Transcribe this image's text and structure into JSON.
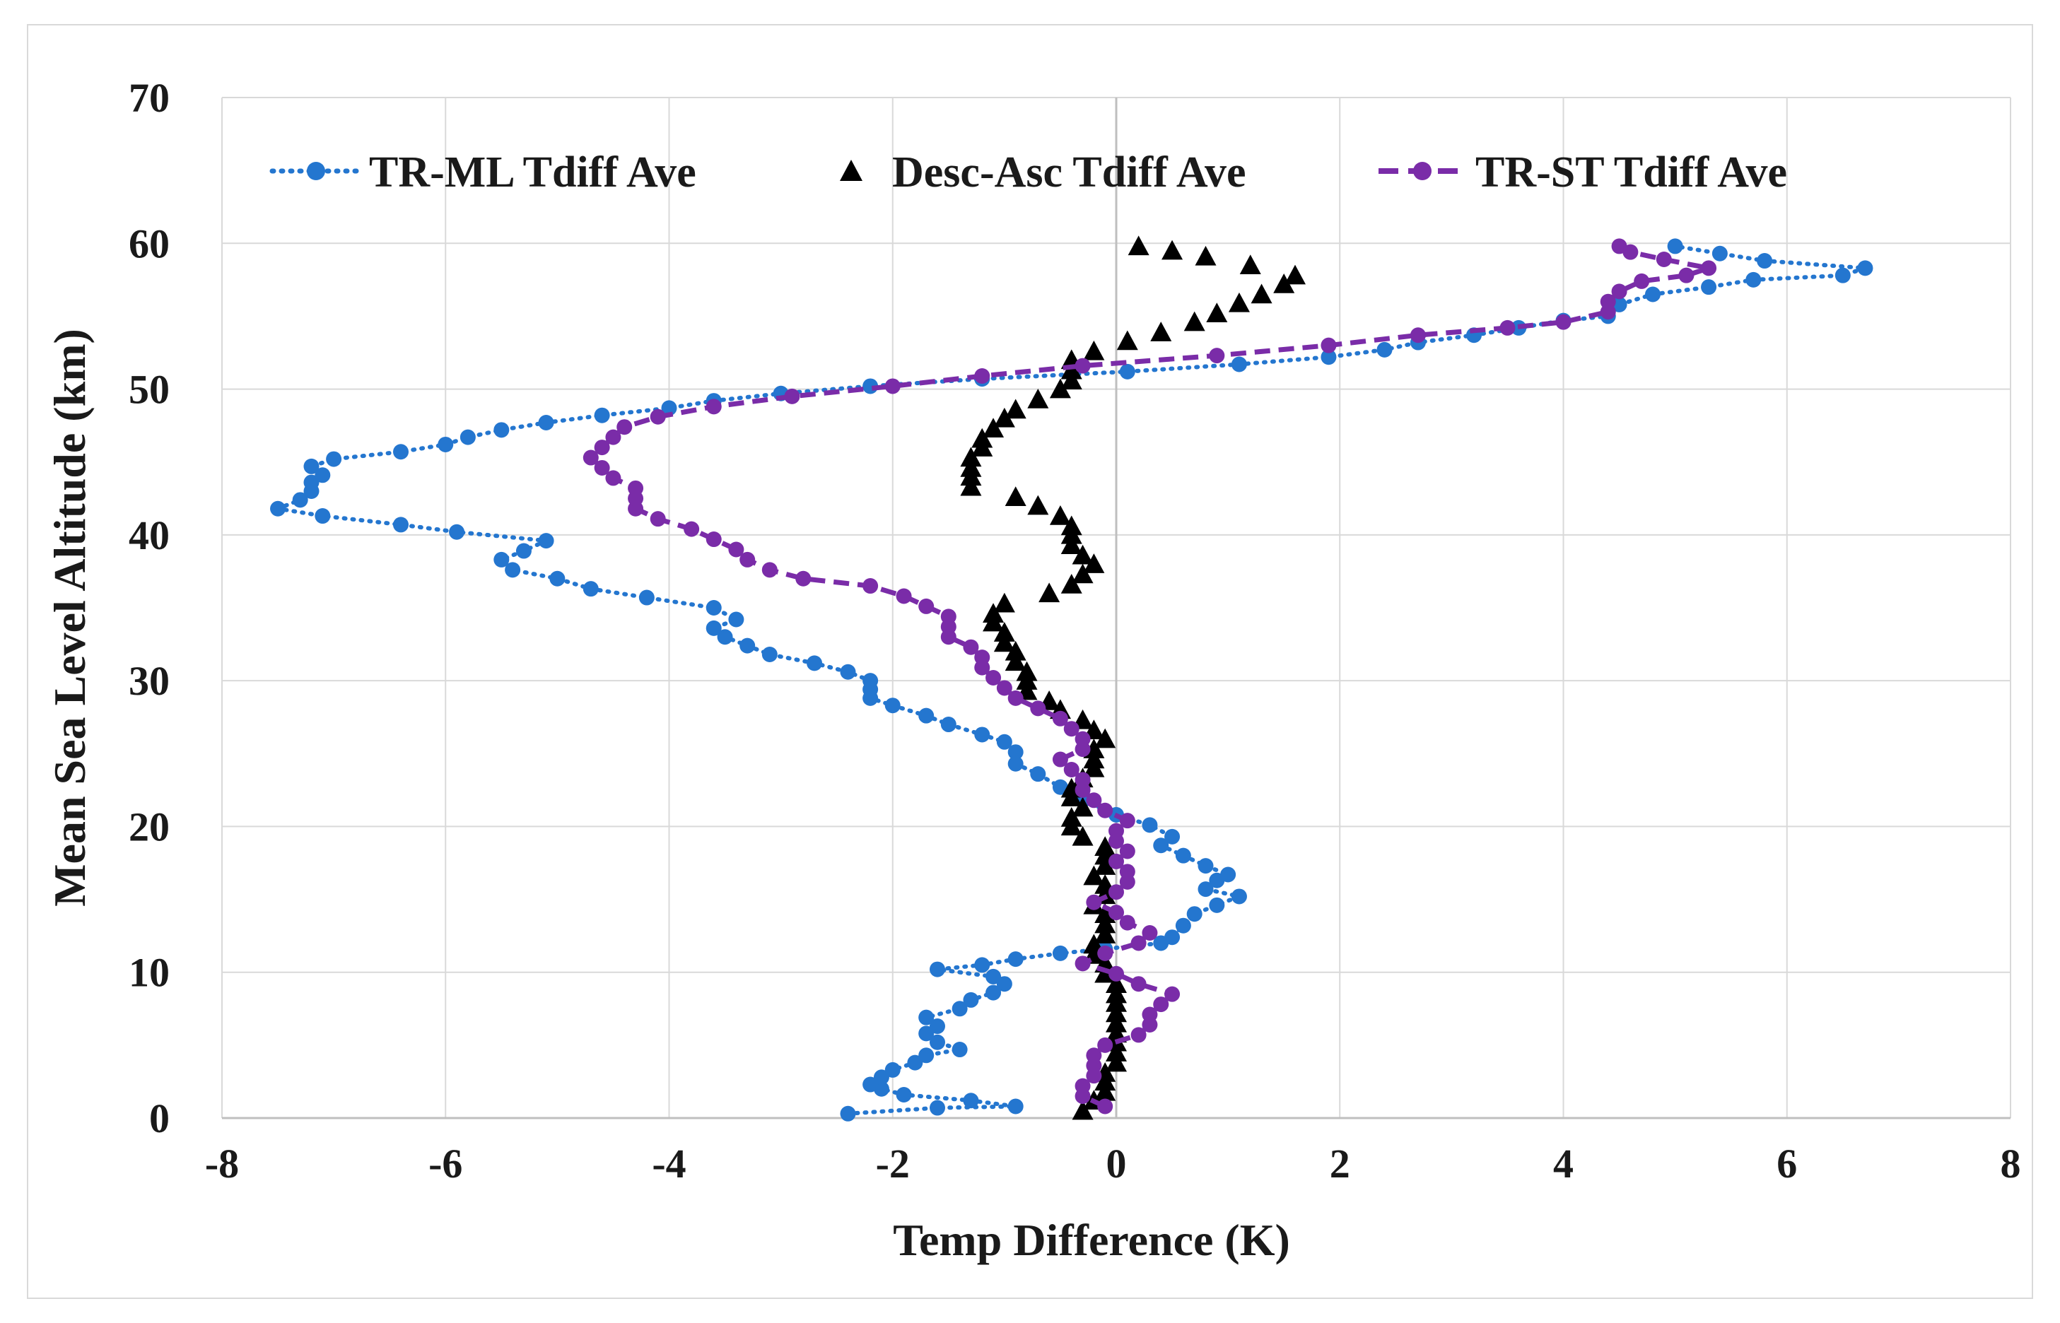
{
  "chart_data": {
    "type": "scatter",
    "title": "",
    "xlabel": "Temp Difference (K)",
    "ylabel": "Mean Sea Level Altitude (km)",
    "xlim": [
      -8,
      8
    ],
    "ylim": [
      0,
      70
    ],
    "xticks": [
      "-8",
      "-6",
      "-4",
      "-2",
      "0",
      "2",
      "4",
      "6",
      "8"
    ],
    "yticks": [
      "0",
      "10",
      "20",
      "30",
      "40",
      "50",
      "60",
      "70"
    ],
    "grid": true,
    "legend_position": "top",
    "series": [
      {
        "name": "TR-ML Tdiff Ave",
        "color": "#2476cf",
        "marker": "circle",
        "line": "dotted",
        "points": [
          [
            -2.4,
            0.3
          ],
          [
            -1.6,
            0.7
          ],
          [
            -0.9,
            0.8
          ],
          [
            -1.3,
            1.2
          ],
          [
            -1.9,
            1.6
          ],
          [
            -2.1,
            2.0
          ],
          [
            -2.2,
            2.3
          ],
          [
            -2.1,
            2.8
          ],
          [
            -2.0,
            3.3
          ],
          [
            -1.8,
            3.8
          ],
          [
            -1.7,
            4.3
          ],
          [
            -1.4,
            4.7
          ],
          [
            -1.6,
            5.2
          ],
          [
            -1.7,
            5.8
          ],
          [
            -1.6,
            6.3
          ],
          [
            -1.7,
            6.9
          ],
          [
            -1.4,
            7.5
          ],
          [
            -1.3,
            8.1
          ],
          [
            -1.1,
            8.6
          ],
          [
            -1.0,
            9.2
          ],
          [
            -1.1,
            9.7
          ],
          [
            -1.6,
            10.2
          ],
          [
            -1.2,
            10.5
          ],
          [
            -0.9,
            10.9
          ],
          [
            -0.5,
            11.3
          ],
          [
            -0.1,
            11.6
          ],
          [
            0.4,
            12.0
          ],
          [
            0.5,
            12.4
          ],
          [
            0.6,
            13.2
          ],
          [
            0.7,
            14.0
          ],
          [
            0.9,
            14.6
          ],
          [
            1.1,
            15.2
          ],
          [
            0.8,
            15.7
          ],
          [
            0.9,
            16.3
          ],
          [
            1.0,
            16.7
          ],
          [
            0.8,
            17.3
          ],
          [
            0.6,
            18.0
          ],
          [
            0.4,
            18.7
          ],
          [
            0.5,
            19.3
          ],
          [
            0.3,
            20.1
          ],
          [
            0.0,
            20.8
          ],
          [
            -0.3,
            21.8
          ],
          [
            -0.5,
            22.7
          ],
          [
            -0.7,
            23.6
          ],
          [
            -0.9,
            24.3
          ],
          [
            -0.9,
            25.1
          ],
          [
            -1.0,
            25.8
          ],
          [
            -1.2,
            26.3
          ],
          [
            -1.5,
            27.0
          ],
          [
            -1.7,
            27.6
          ],
          [
            -2.0,
            28.3
          ],
          [
            -2.2,
            28.8
          ],
          [
            -2.2,
            29.4
          ],
          [
            -2.2,
            30.0
          ],
          [
            -2.4,
            30.6
          ],
          [
            -2.7,
            31.2
          ],
          [
            -3.1,
            31.8
          ],
          [
            -3.3,
            32.4
          ],
          [
            -3.5,
            33.0
          ],
          [
            -3.6,
            33.6
          ],
          [
            -3.4,
            34.2
          ],
          [
            -3.6,
            35.0
          ],
          [
            -4.2,
            35.7
          ],
          [
            -4.7,
            36.3
          ],
          [
            -5.0,
            37.0
          ],
          [
            -5.4,
            37.6
          ],
          [
            -5.5,
            38.3
          ],
          [
            -5.3,
            38.9
          ],
          [
            -5.1,
            39.6
          ],
          [
            -5.9,
            40.2
          ],
          [
            -6.4,
            40.7
          ],
          [
            -7.1,
            41.3
          ],
          [
            -7.5,
            41.8
          ],
          [
            -7.3,
            42.4
          ],
          [
            -7.2,
            43.0
          ],
          [
            -7.2,
            43.6
          ],
          [
            -7.1,
            44.1
          ],
          [
            -7.2,
            44.7
          ],
          [
            -7.0,
            45.2
          ],
          [
            -6.4,
            45.7
          ],
          [
            -6.0,
            46.2
          ],
          [
            -5.8,
            46.7
          ],
          [
            -5.5,
            47.2
          ],
          [
            -5.1,
            47.7
          ],
          [
            -4.6,
            48.2
          ],
          [
            -4.0,
            48.7
          ],
          [
            -3.6,
            49.2
          ],
          [
            -3.0,
            49.7
          ],
          [
            -2.2,
            50.2
          ],
          [
            -1.2,
            50.7
          ],
          [
            0.1,
            51.2
          ],
          [
            1.1,
            51.7
          ],
          [
            1.9,
            52.2
          ],
          [
            2.4,
            52.7
          ],
          [
            2.7,
            53.2
          ],
          [
            3.2,
            53.7
          ],
          [
            3.6,
            54.2
          ],
          [
            4.0,
            54.7
          ],
          [
            4.4,
            55.0
          ],
          [
            4.5,
            55.8
          ],
          [
            4.8,
            56.5
          ],
          [
            5.3,
            57.0
          ],
          [
            5.7,
            57.5
          ],
          [
            6.5,
            57.8
          ],
          [
            6.7,
            58.3
          ],
          [
            5.8,
            58.8
          ],
          [
            5.4,
            59.3
          ],
          [
            5.0,
            59.8
          ]
        ]
      },
      {
        "name": "Desc-Asc Tdiff Ave",
        "color": "#000000",
        "marker": "triangle",
        "line": "none",
        "points": [
          [
            -0.3,
            0.5
          ],
          [
            -0.2,
            1.2
          ],
          [
            -0.1,
            1.8
          ],
          [
            -0.1,
            2.5
          ],
          [
            -0.1,
            3.1
          ],
          [
            0.0,
            3.8
          ],
          [
            0.0,
            4.5
          ],
          [
            0.0,
            5.2
          ],
          [
            0.0,
            5.8
          ],
          [
            0.0,
            6.5
          ],
          [
            0.0,
            7.2
          ],
          [
            0.0,
            7.9
          ],
          [
            0.0,
            8.5
          ],
          [
            0.0,
            9.2
          ],
          [
            -0.1,
            9.9
          ],
          [
            -0.1,
            10.6
          ],
          [
            -0.2,
            11.2
          ],
          [
            -0.2,
            11.9
          ],
          [
            -0.1,
            12.6
          ],
          [
            -0.1,
            13.3
          ],
          [
            -0.1,
            14.0
          ],
          [
            -0.2,
            14.6
          ],
          [
            -0.1,
            15.3
          ],
          [
            -0.1,
            16.0
          ],
          [
            -0.2,
            16.6
          ],
          [
            -0.1,
            17.3
          ],
          [
            -0.1,
            18.0
          ],
          [
            -0.1,
            18.6
          ],
          [
            -0.3,
            19.3
          ],
          [
            -0.4,
            20.0
          ],
          [
            -0.4,
            20.6
          ],
          [
            -0.3,
            21.3
          ],
          [
            -0.4,
            22.0
          ],
          [
            -0.4,
            22.6
          ],
          [
            -0.3,
            23.3
          ],
          [
            -0.2,
            24.0
          ],
          [
            -0.2,
            24.6
          ],
          [
            -0.2,
            25.3
          ],
          [
            -0.1,
            26.0
          ],
          [
            -0.2,
            26.6
          ],
          [
            -0.3,
            27.3
          ],
          [
            -0.5,
            28.0
          ],
          [
            -0.6,
            28.6
          ],
          [
            -0.8,
            29.3
          ],
          [
            -0.8,
            30.0
          ],
          [
            -0.8,
            30.6
          ],
          [
            -0.9,
            31.3
          ],
          [
            -0.9,
            32.0
          ],
          [
            -1.0,
            32.6
          ],
          [
            -1.0,
            33.3
          ],
          [
            -1.1,
            34.0
          ],
          [
            -1.1,
            34.6
          ],
          [
            -1.0,
            35.3
          ],
          [
            -0.6,
            36.0
          ],
          [
            -0.4,
            36.6
          ],
          [
            -0.3,
            37.3
          ],
          [
            -0.2,
            38.0
          ],
          [
            -0.3,
            38.6
          ],
          [
            -0.4,
            39.3
          ],
          [
            -0.4,
            40.0
          ],
          [
            -0.4,
            40.6
          ],
          [
            -0.5,
            41.3
          ],
          [
            -0.7,
            42.0
          ],
          [
            -0.9,
            42.6
          ],
          [
            -1.3,
            43.3
          ],
          [
            -1.3,
            44.0
          ],
          [
            -1.3,
            44.6
          ],
          [
            -1.3,
            45.3
          ],
          [
            -1.2,
            46.0
          ],
          [
            -1.2,
            46.6
          ],
          [
            -1.1,
            47.3
          ],
          [
            -1.0,
            48.0
          ],
          [
            -0.9,
            48.6
          ],
          [
            -0.7,
            49.3
          ],
          [
            -0.5,
            50.0
          ],
          [
            -0.4,
            50.6
          ],
          [
            -0.4,
            51.3
          ],
          [
            -0.4,
            52.0
          ],
          [
            -0.2,
            52.6
          ],
          [
            0.1,
            53.3
          ],
          [
            0.4,
            53.9
          ],
          [
            0.7,
            54.6
          ],
          [
            0.9,
            55.2
          ],
          [
            1.1,
            55.9
          ],
          [
            1.3,
            56.5
          ],
          [
            1.5,
            57.2
          ],
          [
            1.6,
            57.8
          ],
          [
            1.2,
            58.5
          ],
          [
            0.8,
            59.1
          ],
          [
            0.5,
            59.5
          ],
          [
            0.2,
            59.8
          ]
        ]
      },
      {
        "name": "TR-ST Tdiff Ave",
        "color": "#7a2ca8",
        "marker": "circle",
        "line": "dashed",
        "points": [
          [
            -0.1,
            0.8
          ],
          [
            -0.3,
            1.5
          ],
          [
            -0.3,
            2.2
          ],
          [
            -0.2,
            2.9
          ],
          [
            -0.2,
            3.6
          ],
          [
            -0.2,
            4.3
          ],
          [
            -0.1,
            5.0
          ],
          [
            0.2,
            5.7
          ],
          [
            0.3,
            6.4
          ],
          [
            0.3,
            7.1
          ],
          [
            0.4,
            7.8
          ],
          [
            0.5,
            8.5
          ],
          [
            0.2,
            9.2
          ],
          [
            0.0,
            9.9
          ],
          [
            -0.3,
            10.6
          ],
          [
            -0.1,
            11.3
          ],
          [
            0.2,
            12.0
          ],
          [
            0.3,
            12.7
          ],
          [
            0.1,
            13.4
          ],
          [
            0.0,
            14.1
          ],
          [
            -0.2,
            14.8
          ],
          [
            0.0,
            15.5
          ],
          [
            0.1,
            16.2
          ],
          [
            0.1,
            16.9
          ],
          [
            0.0,
            17.6
          ],
          [
            0.1,
            18.3
          ],
          [
            0.0,
            19.0
          ],
          [
            0.0,
            19.7
          ],
          [
            0.1,
            20.4
          ],
          [
            -0.1,
            21.1
          ],
          [
            -0.2,
            21.8
          ],
          [
            -0.3,
            22.5
          ],
          [
            -0.3,
            23.2
          ],
          [
            -0.4,
            23.9
          ],
          [
            -0.5,
            24.6
          ],
          [
            -0.3,
            25.3
          ],
          [
            -0.3,
            26.0
          ],
          [
            -0.4,
            26.7
          ],
          [
            -0.5,
            27.4
          ],
          [
            -0.7,
            28.1
          ],
          [
            -0.9,
            28.8
          ],
          [
            -1.0,
            29.5
          ],
          [
            -1.1,
            30.2
          ],
          [
            -1.2,
            30.9
          ],
          [
            -1.2,
            31.6
          ],
          [
            -1.3,
            32.3
          ],
          [
            -1.5,
            33.0
          ],
          [
            -1.5,
            33.7
          ],
          [
            -1.5,
            34.4
          ],
          [
            -1.7,
            35.1
          ],
          [
            -1.9,
            35.8
          ],
          [
            -2.2,
            36.5
          ],
          [
            -2.8,
            37.0
          ],
          [
            -3.1,
            37.6
          ],
          [
            -3.3,
            38.3
          ],
          [
            -3.4,
            39.0
          ],
          [
            -3.6,
            39.7
          ],
          [
            -3.8,
            40.4
          ],
          [
            -4.1,
            41.1
          ],
          [
            -4.3,
            41.8
          ],
          [
            -4.3,
            42.5
          ],
          [
            -4.3,
            43.2
          ],
          [
            -4.5,
            43.9
          ],
          [
            -4.6,
            44.6
          ],
          [
            -4.7,
            45.3
          ],
          [
            -4.6,
            46.0
          ],
          [
            -4.5,
            46.7
          ],
          [
            -4.4,
            47.4
          ],
          [
            -4.1,
            48.1
          ],
          [
            -3.6,
            48.8
          ],
          [
            -2.9,
            49.5
          ],
          [
            -2.0,
            50.2
          ],
          [
            -1.2,
            50.9
          ],
          [
            -0.3,
            51.6
          ],
          [
            0.9,
            52.3
          ],
          [
            1.9,
            53.0
          ],
          [
            2.7,
            53.7
          ],
          [
            3.5,
            54.2
          ],
          [
            4.0,
            54.6
          ],
          [
            4.4,
            55.3
          ],
          [
            4.4,
            56.0
          ],
          [
            4.5,
            56.7
          ],
          [
            4.7,
            57.4
          ],
          [
            5.1,
            57.8
          ],
          [
            5.3,
            58.3
          ],
          [
            4.9,
            58.9
          ],
          [
            4.6,
            59.4
          ],
          [
            4.5,
            59.8
          ]
        ]
      }
    ]
  }
}
